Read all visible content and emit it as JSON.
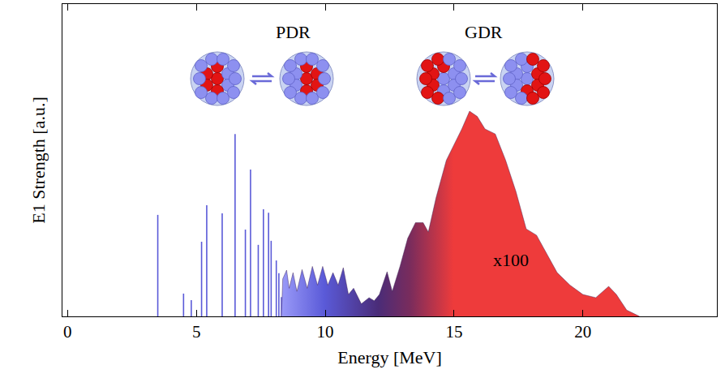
{
  "chart_data": {
    "type": "line",
    "x_label": "Energy [MeV]",
    "y_label": "E1 Strength [a.u.]",
    "xlim": [
      -0.2,
      25.2
    ],
    "xticks": [
      0,
      5,
      10,
      15,
      20
    ],
    "ylim": [
      0,
      1
    ],
    "yticks": [],
    "tick_labels": "x",
    "grid": false,
    "series": [
      {
        "name": "PDR",
        "type": "stem",
        "color": "#5a5ad8",
        "x": [
          3.5,
          4.5,
          4.8,
          5.2,
          5.4,
          6.0,
          6.5,
          6.9,
          7.1,
          7.4,
          7.6,
          7.8,
          7.9,
          8.1,
          8.2,
          8.3
        ],
        "values": [
          0.325,
          0.073,
          0.052,
          0.239,
          0.356,
          0.33,
          0.584,
          0.278,
          0.47,
          0.229,
          0.343,
          0.332,
          0.242,
          0.179,
          0.138,
          0.062
        ]
      },
      {
        "name": "GDR",
        "type": "area",
        "color": "#ee3b3b",
        "x": [
          8.3,
          8.35,
          8.5,
          8.6,
          8.75,
          8.9,
          9.1,
          9.3,
          9.5,
          9.7,
          9.9,
          10.1,
          10.3,
          10.5,
          10.7,
          10.9,
          11.1,
          11.4,
          11.7,
          11.9,
          12.1,
          12.4,
          12.6,
          12.9,
          13.2,
          13.5,
          13.8,
          14.0,
          14.3,
          14.7,
          15.0,
          15.3,
          15.6,
          15.9,
          16.2,
          16.6,
          17.0,
          17.4,
          17.8,
          18.2,
          18.6,
          19.0,
          19.5,
          20.0,
          20.5,
          21.0,
          21.3,
          21.7,
          22.2
        ],
        "values": [
          0.0,
          0.12,
          0.148,
          0.09,
          0.14,
          0.08,
          0.15,
          0.09,
          0.16,
          0.1,
          0.16,
          0.1,
          0.14,
          0.1,
          0.156,
          0.07,
          0.09,
          0.04,
          0.06,
          0.05,
          0.07,
          0.143,
          0.08,
          0.16,
          0.25,
          0.3,
          0.3,
          0.27,
          0.38,
          0.5,
          0.55,
          0.6,
          0.657,
          0.64,
          0.6,
          0.584,
          0.5,
          0.4,
          0.28,
          0.26,
          0.2,
          0.14,
          0.1,
          0.07,
          0.06,
          0.096,
          0.07,
          0.02,
          0.0
        ]
      }
    ],
    "annotations": [
      {
        "text": "PDR",
        "x": 8.77,
        "y": 0.91
      },
      {
        "text": "GDR",
        "x": 16.16,
        "y": 0.91
      },
      {
        "text": "x100",
        "x": 17.2,
        "y": 0.18
      }
    ]
  }
}
